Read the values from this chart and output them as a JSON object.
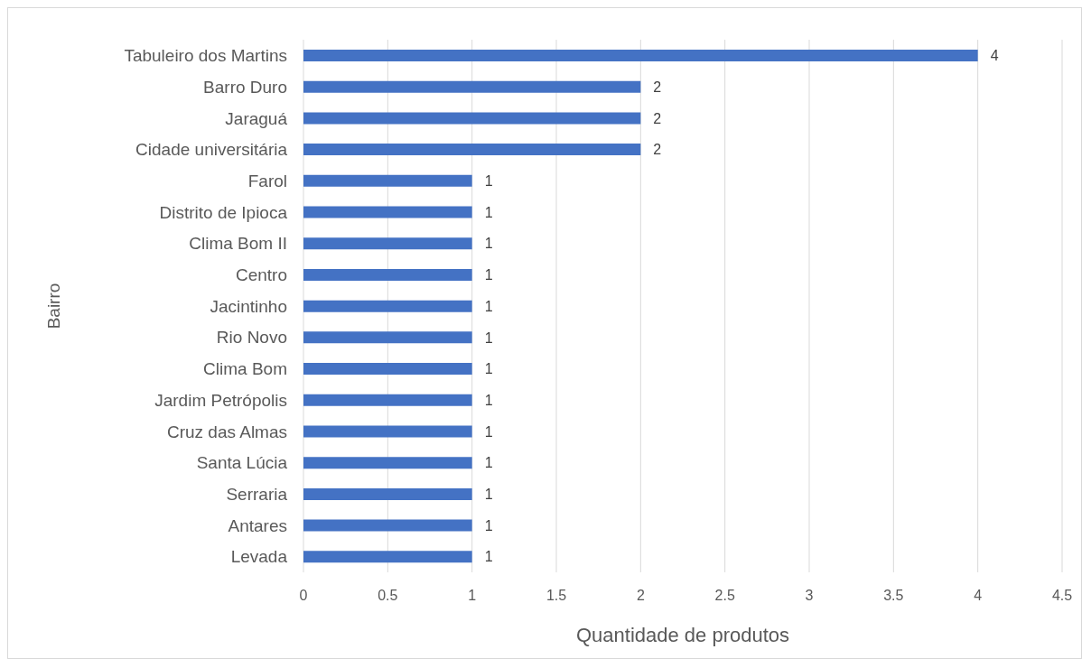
{
  "chart_data": {
    "type": "bar",
    "orientation": "horizontal",
    "xlabel": "Quantidade de produtos",
    "ylabel": "Bairro",
    "categories": [
      "Tabuleiro dos Martins",
      "Barro Duro",
      "Jaraguá",
      "Cidade universitária",
      "Farol",
      "Distrito de Ipioca",
      "Clima Bom II",
      "Centro",
      "Jacintinho",
      "Rio Novo",
      "Clima Bom",
      "Jardim Petrópolis",
      "Cruz das Almas",
      "Santa Lúcia",
      "Serraria",
      "Antares",
      "Levada"
    ],
    "values": [
      4,
      2,
      2,
      2,
      1,
      1,
      1,
      1,
      1,
      1,
      1,
      1,
      1,
      1,
      1,
      1,
      1
    ],
    "color": "#4472c4",
    "xlim": [
      0,
      4.5
    ],
    "xticks": [
      0,
      0.5,
      1,
      1.5,
      2,
      2.5,
      3,
      3.5,
      4,
      4.5
    ],
    "grid": "x",
    "data_labels": true
  }
}
